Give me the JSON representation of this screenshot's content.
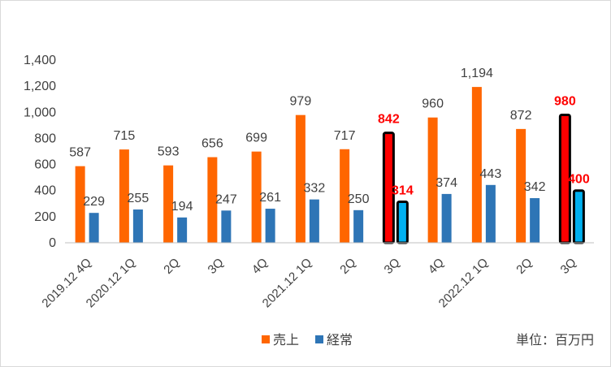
{
  "chart_data": {
    "type": "bar",
    "categories": [
      "2019.12 4Q",
      "2020.12 1Q",
      "2Q",
      "3Q",
      "4Q",
      "2021.12 1Q",
      "2Q",
      "3Q",
      "4Q",
      "2022.12 1Q",
      "2Q",
      "3Q"
    ],
    "series": [
      {
        "name": "売上",
        "color": "#ff6600",
        "values": [
          587,
          715,
          593,
          656,
          699,
          979,
          717,
          842,
          960,
          1194,
          872,
          980
        ],
        "labels": [
          "587",
          "715",
          "593",
          "656",
          "699",
          "979",
          "717",
          "842",
          "960",
          "1,194",
          "872",
          "980"
        ]
      },
      {
        "name": "経常",
        "color": "#2e75b6",
        "values": [
          229,
          255,
          194,
          247,
          261,
          332,
          250,
          314,
          374,
          443,
          342,
          400
        ],
        "labels": [
          "229",
          "255",
          "194",
          "247",
          "261",
          "332",
          "250",
          "314",
          "374",
          "443",
          "342",
          "400"
        ]
      }
    ],
    "highlighted_categories": [
      7,
      11
    ],
    "highlight": {
      "sales_fill": "#ff0000",
      "ordinary_fill": "#00b0f0",
      "outline": "#000000",
      "label_color": "#ff0000"
    },
    "y_ticks": [
      "0",
      "200",
      "400",
      "600",
      "800",
      "1,000",
      "1,200",
      "1,400"
    ],
    "ylim": [
      0,
      1400
    ],
    "grid": false,
    "legend_position": "bottom",
    "unit_note": "単位：百万円"
  }
}
